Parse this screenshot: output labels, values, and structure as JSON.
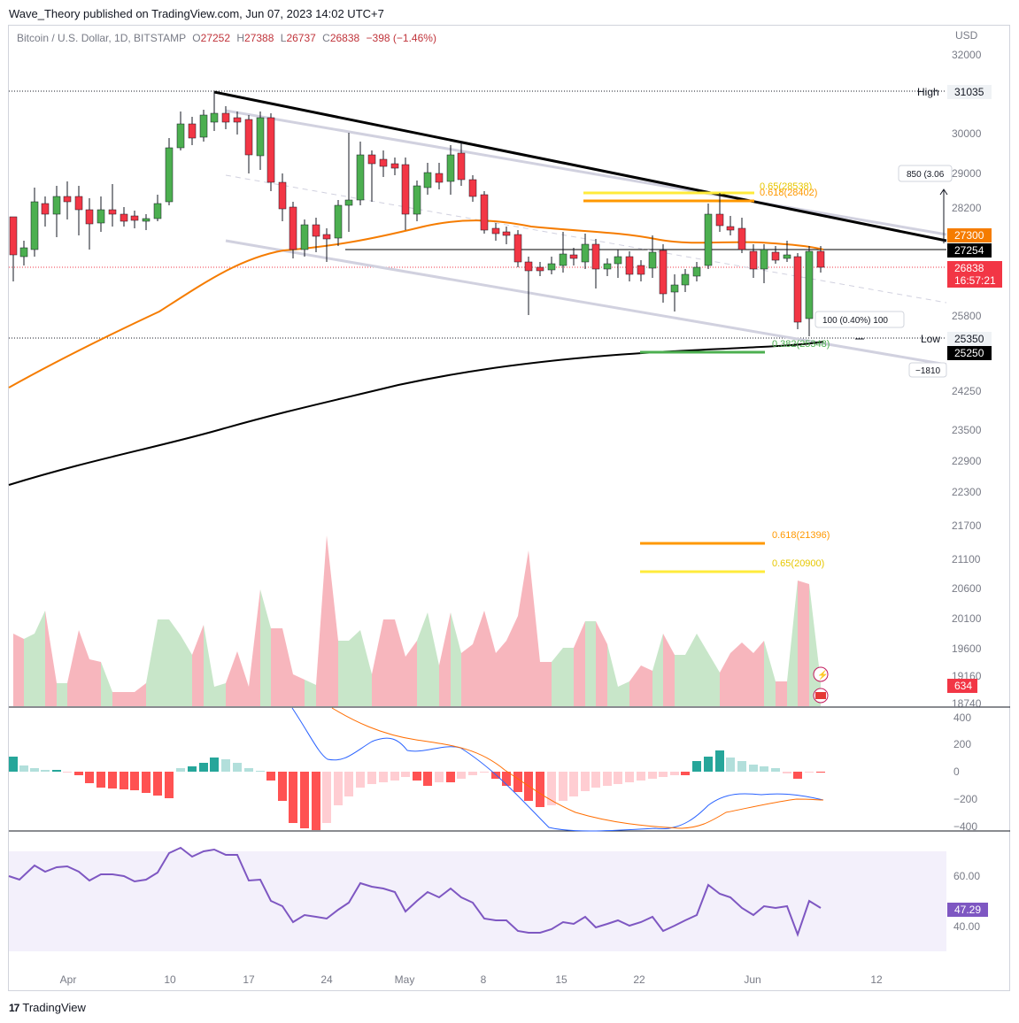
{
  "caption": "Wave_Theory published on TradingView.com, Jun 07, 2023 14:02 UTC+7",
  "legend": {
    "symbol": "Bitcoin / U.S. Dollar, 1D, BITSTAMP",
    "o_label": "O",
    "o": "27252",
    "h_label": "H",
    "h": "27388",
    "l_label": "L",
    "l": "26737",
    "c_label": "C",
    "c": "26838",
    "change": "−398 (−1.46%)"
  },
  "price_axis": {
    "currency": "USD",
    "ticks": [
      "32000",
      "29000",
      "28200",
      "25800",
      "24250",
      "23500",
      "22900",
      "22300",
      "21700",
      "21100",
      "20600",
      "20100",
      "19600",
      "19160",
      "18740"
    ],
    "high_label": "High",
    "high_value": "31035",
    "low_label": "Low",
    "low_value": "25350",
    "tag_27300": "27300",
    "tag_27254": "27254",
    "tag_last": "26838",
    "tag_countdown": "16:57:21",
    "tag_25250": "25250",
    "measure_label": "850 (3.06",
    "measure_tooltip": "100 (0.40%) 100",
    "neg_label": "−1810",
    "extra_tick": "30000"
  },
  "fib": {
    "upper_65": "0.65(28538)",
    "upper_618": "0.618(28402)",
    "lower_382": "0.382(25348)",
    "mid_618": "0.618(21396)",
    "mid_65": "0.65(20900)"
  },
  "volume": {
    "value": "634"
  },
  "macd": {
    "ticks": [
      "400",
      "200",
      "0",
      "−200",
      "−400"
    ]
  },
  "rsi": {
    "ticks": [
      "60.00",
      "40.00"
    ],
    "value": "47.29"
  },
  "time_axis": [
    "Apr",
    "10",
    "17",
    "24",
    "May",
    "8",
    "15",
    "22",
    "Jun",
    "12"
  ],
  "footer": {
    "brand": "TradingView",
    "logo_mark": "17"
  },
  "colors": {
    "up": "#26a69a",
    "up_body": "#4caf50",
    "down": "#f23645",
    "ema_orange": "#f57c00",
    "ma_black": "#000000",
    "rsi": "#7e57c2",
    "macd_line": "#2962ff",
    "signal": "#ff6d00",
    "fib_yellow": "#ffeb3b",
    "fib_orange": "#ff9800"
  }
}
